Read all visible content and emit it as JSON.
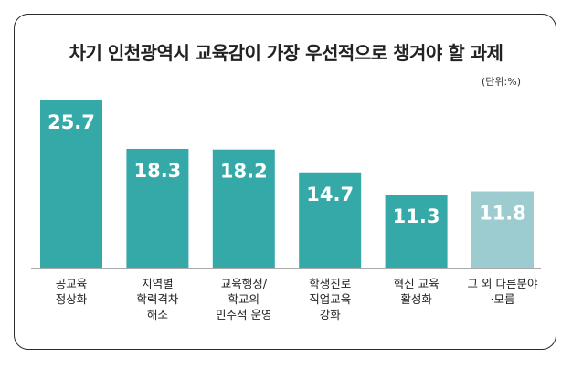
{
  "chart_data": {
    "type": "bar",
    "title": "차기 인천광역시 교육감이 가장 우선적으로 챙겨야 할 과제",
    "unit": "(단위:%)",
    "categories": [
      [
        "공교육",
        "정상화"
      ],
      [
        "지역별",
        "학력격차",
        "해소"
      ],
      [
        "교육행정/",
        "학교의",
        "민주적 운영"
      ],
      [
        "학생진로",
        "직업교육",
        "강화"
      ],
      [
        "혁신 교육",
        "활성화"
      ],
      [
        "그 외 다른분야",
        "·모름"
      ]
    ],
    "values": [
      25.7,
      18.3,
      18.2,
      14.7,
      11.3,
      11.8
    ],
    "value_labels": [
      "25.7",
      "18.3",
      "18.2",
      "14.7",
      "11.3",
      "11.8"
    ],
    "bar_colors": [
      "#35a8a8",
      "#35a8a8",
      "#35a8a8",
      "#35a8a8",
      "#35a8a8",
      "#9cccd0"
    ],
    "ylim": [
      0,
      25.7
    ],
    "grid": false,
    "legend": "none"
  }
}
